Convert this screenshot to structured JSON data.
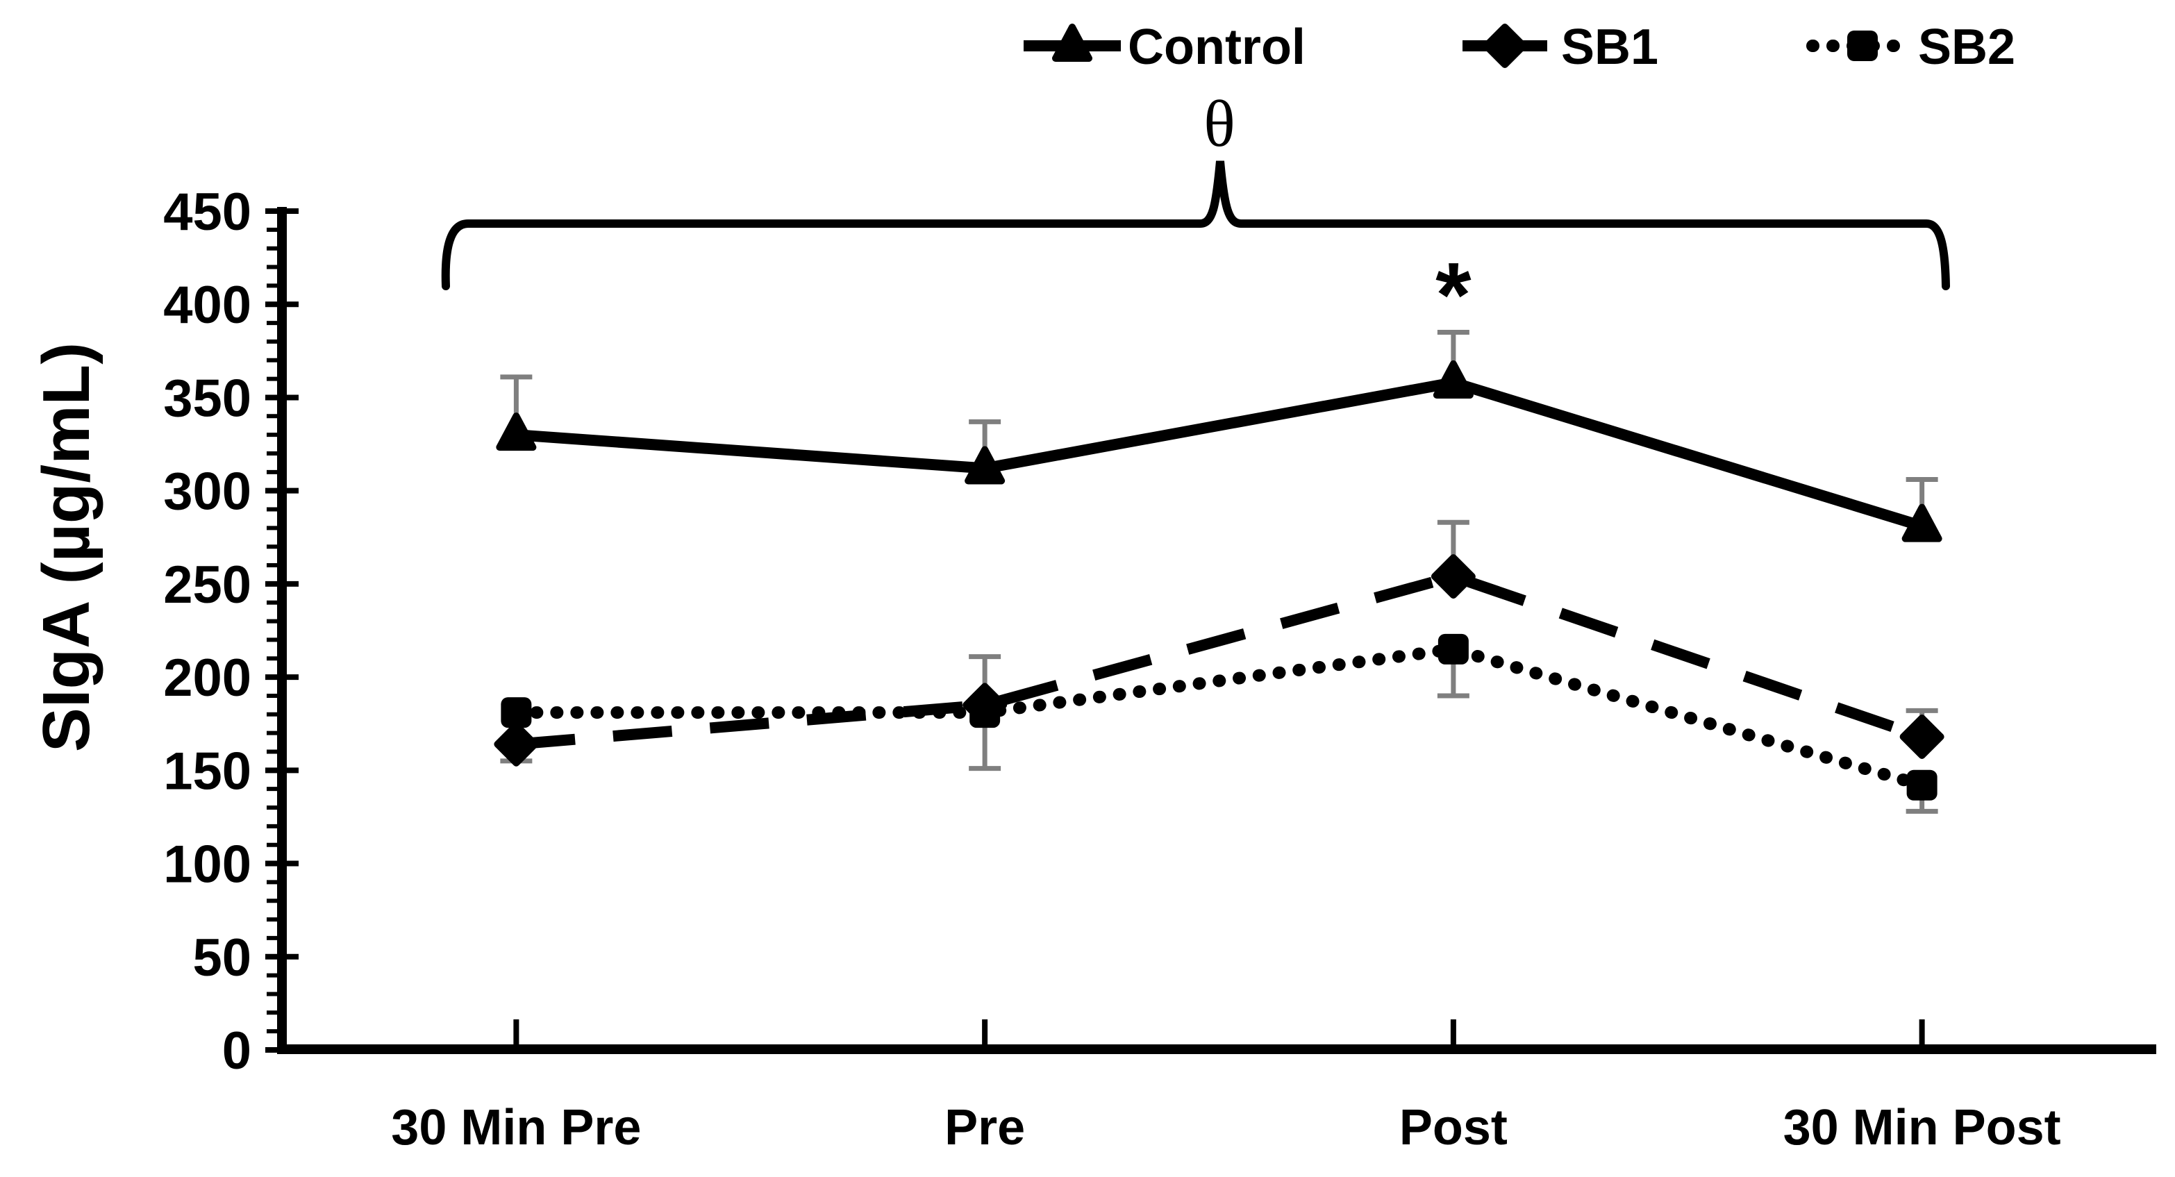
{
  "chart_data": {
    "type": "line",
    "title": "",
    "xlabel": "",
    "ylabel": "SIgA (µg/mL)",
    "categories": [
      "30 Min Pre",
      "Pre",
      "Post",
      "30 Min Post"
    ],
    "yticks": [
      "0",
      "50",
      "100",
      "150",
      "200",
      "250",
      "300",
      "350",
      "400",
      "450"
    ],
    "ylim": [
      0,
      450
    ],
    "y_major_step": 50,
    "y_minor_step": 10,
    "grid": false,
    "legend_position": "top",
    "background_color": "#ffffff",
    "line_color": "#000000",
    "error_bar_color": "#7f7f7f",
    "series": [
      {
        "name": "Control",
        "marker": "triangle",
        "line_style": "solid",
        "values": [
          330,
          312,
          358,
          281
        ],
        "error_up": [
          31,
          25,
          27,
          25
        ],
        "error_down": [
          0,
          0,
          0,
          0
        ]
      },
      {
        "name": "SB1",
        "marker": "diamond",
        "line_style": "dashed",
        "values": [
          164,
          185,
          254,
          168
        ],
        "error_up": [
          0,
          0,
          29,
          14
        ],
        "error_down": [
          9,
          0,
          0,
          0
        ]
      },
      {
        "name": "SB2",
        "marker": "square",
        "line_style": "dotted",
        "values": [
          181,
          181,
          215,
          142
        ],
        "error_up": [
          0,
          30,
          0,
          0
        ],
        "error_down": [
          0,
          30,
          25,
          14
        ]
      }
    ],
    "annotations": [
      {
        "text": "*",
        "target": "Control at Post"
      },
      {
        "text": "θ",
        "target": "bracket spanning 30 Min Pre to 30 Min Post"
      }
    ]
  }
}
